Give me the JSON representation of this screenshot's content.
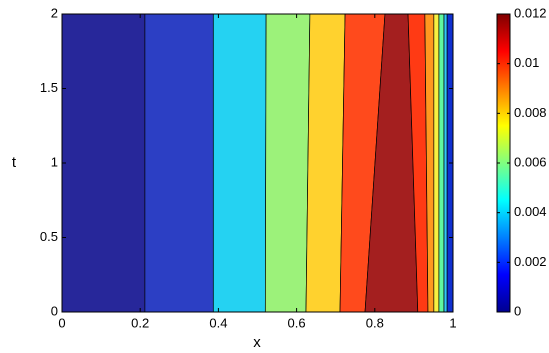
{
  "chart_data": {
    "type": "contourf",
    "xlabel": "x",
    "ylabel": "t",
    "xlim": [
      0,
      1
    ],
    "xticks": [
      0,
      0.2,
      0.4,
      0.6,
      0.8,
      1
    ],
    "ylim": [
      0,
      2
    ],
    "yticks": [
      0,
      0.5,
      1,
      1.5,
      2
    ],
    "bands": [
      {
        "color": "#27279a",
        "x_bottom": [
          0,
          0.212
        ],
        "x_top": [
          0,
          0.212
        ]
      },
      {
        "color": "#2c3fc4",
        "x_bottom": [
          0.212,
          0.387
        ],
        "x_top": [
          0.212,
          0.387
        ]
      },
      {
        "color": "#25d2f2",
        "x_bottom": [
          0.387,
          0.52
        ],
        "x_top": [
          0.387,
          0.522
        ]
      },
      {
        "color": "#9cf27a",
        "x_bottom": [
          0.52,
          0.624
        ],
        "x_top": [
          0.522,
          0.634
        ]
      },
      {
        "color": "#ffd22e",
        "x_bottom": [
          0.624,
          0.711
        ],
        "x_top": [
          0.634,
          0.724
        ]
      },
      {
        "color": "#ff4a1c",
        "x_bottom": [
          0.711,
          0.775
        ],
        "x_top": [
          0.724,
          0.826
        ]
      },
      {
        "color": "#a41f1f",
        "x_bottom": [
          0.775,
          0.91
        ],
        "x_top": [
          0.826,
          0.885
        ]
      },
      {
        "color": "#ff3a14",
        "x_bottom": [
          0.91,
          0.936
        ],
        "x_top": [
          0.885,
          0.928
        ]
      },
      {
        "color": "#ff9820",
        "x_bottom": [
          0.936,
          0.951
        ],
        "x_top": [
          0.928,
          0.951
        ]
      },
      {
        "color": "#f8f040",
        "x_bottom": [
          0.951,
          0.964
        ],
        "x_top": [
          0.951,
          0.964
        ]
      },
      {
        "color": "#60f8a0",
        "x_bottom": [
          0.964,
          0.977
        ],
        "x_top": [
          0.964,
          0.977
        ]
      },
      {
        "color": "#30c8f8",
        "x_bottom": [
          0.977,
          0.985
        ],
        "x_top": [
          0.977,
          0.985
        ]
      },
      {
        "color": "#1030d0",
        "x_bottom": [
          0.985,
          1
        ],
        "x_top": [
          0.985,
          1
        ]
      }
    ],
    "colorbar": {
      "lim": [
        0,
        0.012
      ],
      "ticks": [
        0,
        0.002,
        0.004,
        0.006,
        0.008,
        0.01,
        0.012
      ],
      "colors": [
        "#00008f",
        "#0000ff",
        "#0080ff",
        "#00ffff",
        "#80ff80",
        "#ffff00",
        "#ff8000",
        "#ff0000",
        "#800000"
      ]
    }
  }
}
